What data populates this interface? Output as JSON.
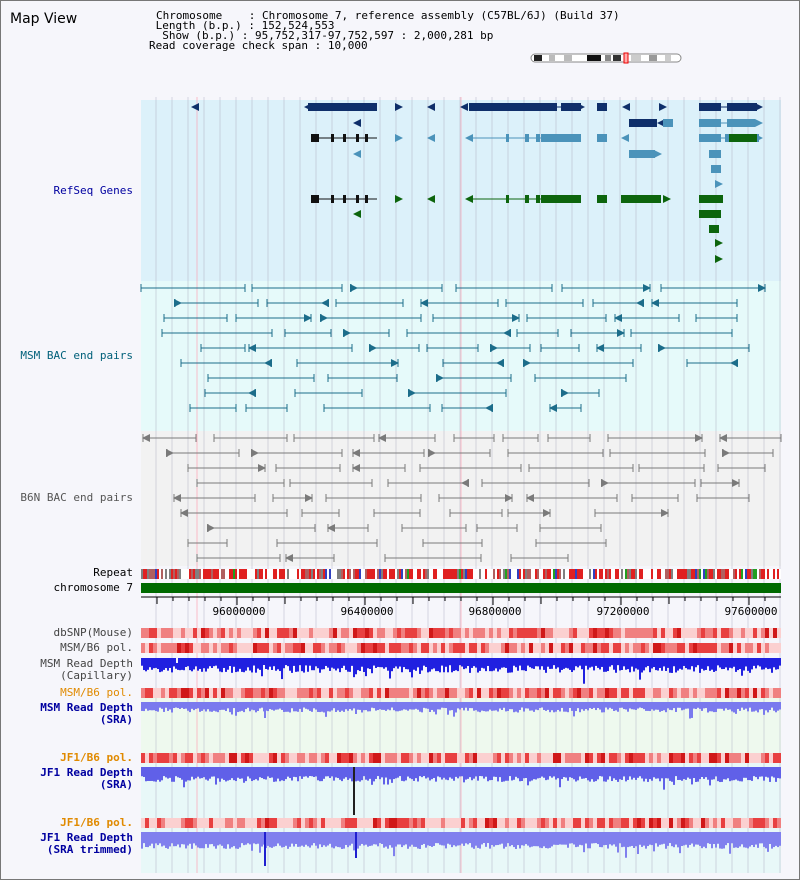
{
  "page_title": "Map View",
  "header": {
    "chromosome_label": "Chromosome",
    "chromosome_value": "Chromosome 7, reference assembly (C57BL/6J) (Build 37)",
    "length_label": "Length (b.p.)",
    "length_value": "152,524,553",
    "show_label": "Show (b.p.)",
    "show_value": "95,752,317-97,752,597 : 2,000,281 bp",
    "coverage_label": "Read coverage check span",
    "coverage_value": "10,000"
  },
  "tracks": {
    "refseq": "RefSeq Genes",
    "msm_bac": "MSM BAC end pairs",
    "b6n_bac": "B6N BAC end pairs",
    "repeat": "Repeat",
    "chromosome": "chromosome 7",
    "dbsnp": "dbSNP(Mouse)",
    "msm_pol1": "MSM/B6 pol.",
    "msm_depth_cap_1": "MSM Read Depth",
    "msm_depth_cap_2": "(Capillary)",
    "msm_pol2": "MSM/B6 pol.",
    "msm_depth_sra_1": "MSM Read Depth",
    "msm_depth_sra_2": "(SRA)",
    "jf1_pol1": "JF1/B6 pol.",
    "jf1_depth_1": "JF1 Read Depth",
    "jf1_depth_2": "(SRA)",
    "jf1_pol2": "JF1/B6 pol.",
    "jf1_trim_1": "JF1 Read Depth",
    "jf1_trim_2": "(SRA trimmed)"
  },
  "axis": {
    "ticks": [
      "96000000",
      "96400000",
      "96800000",
      "97200000",
      "97600000"
    ]
  },
  "colors": {
    "refseq_bg": "#dcf1fa",
    "msm_bg": "#e6fafa",
    "b6n_bg": "#f2f2f2",
    "refseq_dark": "#0f2f6a",
    "refseq_mid": "#4b93ba",
    "refseq_green": "#0d650d",
    "msm_bac": "#1c6d8a",
    "b6n_bac": "#7a7a7a",
    "label_blue": "#0000a0",
    "label_teal": "#00607a",
    "label_gray": "#555555",
    "label_orange": "#e08a00",
    "depth_blue": "#2020e0",
    "depth_light": "#7a7aee",
    "chrom_green": "#006a00"
  }
}
